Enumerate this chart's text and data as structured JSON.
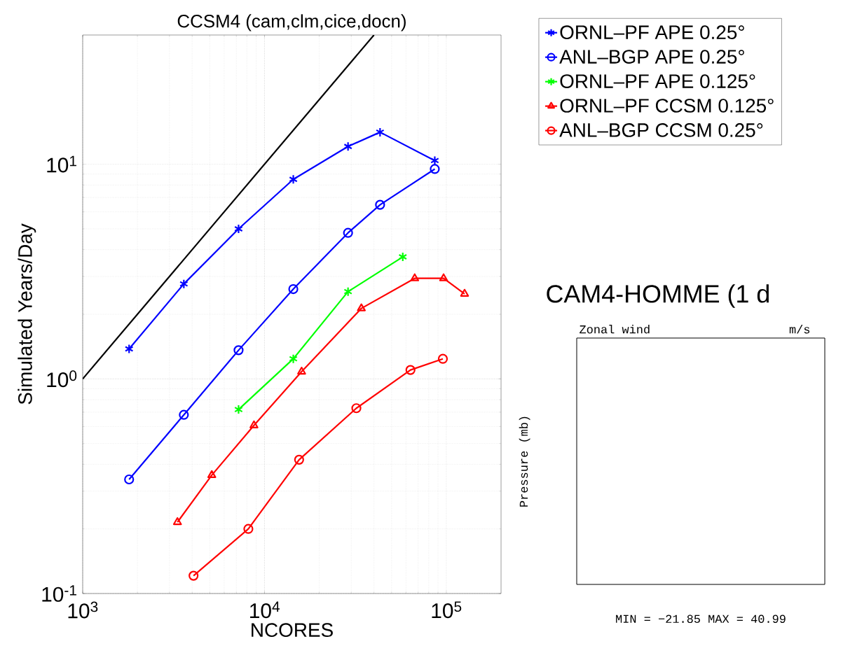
{
  "chart_data": [
    {
      "type": "line",
      "title": "CCSM4 (cam,clm,cice,docn)",
      "xlabel": "NCORES",
      "ylabel": "Simulated Years/Day",
      "log": "xy",
      "grid": true,
      "legend": "top right",
      "xlim": [
        1000,
        200000
      ],
      "ylim": [
        0.1,
        40
      ],
      "xticks": [
        {
          "value": 1000,
          "label": "10$^{3}$"
        },
        {
          "value": 10000,
          "label": "10$^{4}$"
        },
        {
          "value": 100000,
          "label": "10$^{5}$"
        }
      ],
      "yticks": [
        {
          "value": 0.1,
          "label": "10$^{-1}$"
        },
        {
          "value": 1,
          "label": "10$^{0}$"
        },
        {
          "value": 10,
          "label": "10$^{1}$"
        }
      ],
      "series": [
        {
          "name": "ORNL–PF   APE 0.25°",
          "color": "#0000ff",
          "marker": "cross",
          "x": [
            1800,
            3600,
            7200,
            14400,
            28800,
            43200,
            86400
          ],
          "values": [
            1.38,
            2.77,
            5.0,
            8.5,
            12.1,
            14.1,
            10.4
          ]
        },
        {
          "name": "ANL–BGP   APE 0.25°",
          "color": "#0000ff",
          "marker": "circle",
          "x": [
            1800,
            3600,
            7200,
            14400,
            28800,
            43200,
            86400
          ],
          "values": [
            0.34,
            0.68,
            1.36,
            2.62,
            4.79,
            6.47,
            9.5
          ]
        },
        {
          "name": "ORNL–PF   APE 0.125°",
          "color": "#00ff00",
          "marker": "cross",
          "x": [
            7200,
            14400,
            28800,
            57600
          ],
          "values": [
            0.72,
            1.24,
            2.55,
            3.7
          ]
        },
        {
          "name": "ORNL–PF   CCSM 0.125°",
          "color": "#ff0000",
          "marker": "triangle",
          "x": [
            3320,
            5130,
            8750,
            16000,
            34100,
            67000,
            96600,
            126000
          ],
          "values": [
            0.215,
            0.356,
            0.607,
            1.08,
            2.13,
            2.94,
            2.94,
            2.49
          ]
        },
        {
          "name": "ANL–BGP   CCSM 0.25°",
          "color": "#ff0000",
          "marker": "circle",
          "x": [
            4070,
            8150,
            15500,
            32000,
            63500,
            95700
          ],
          "values": [
            0.121,
            0.2,
            0.42,
            0.73,
            1.1,
            1.24
          ]
        },
        {
          "color": "#000000",
          "marker": "none",
          "x": [
            1000,
            40000
          ],
          "values": [
            1,
            40
          ]
        }
      ]
    },
    {
      "type": "other",
      "title": "CAM4-HOMME (1 d",
      "subtitle": "Zonal wind",
      "ylabel": "Pressure (mb)",
      "annotations": [
        "m/s",
        "MIN = −21.85   MAX = 40.99"
      ]
    }
  ]
}
